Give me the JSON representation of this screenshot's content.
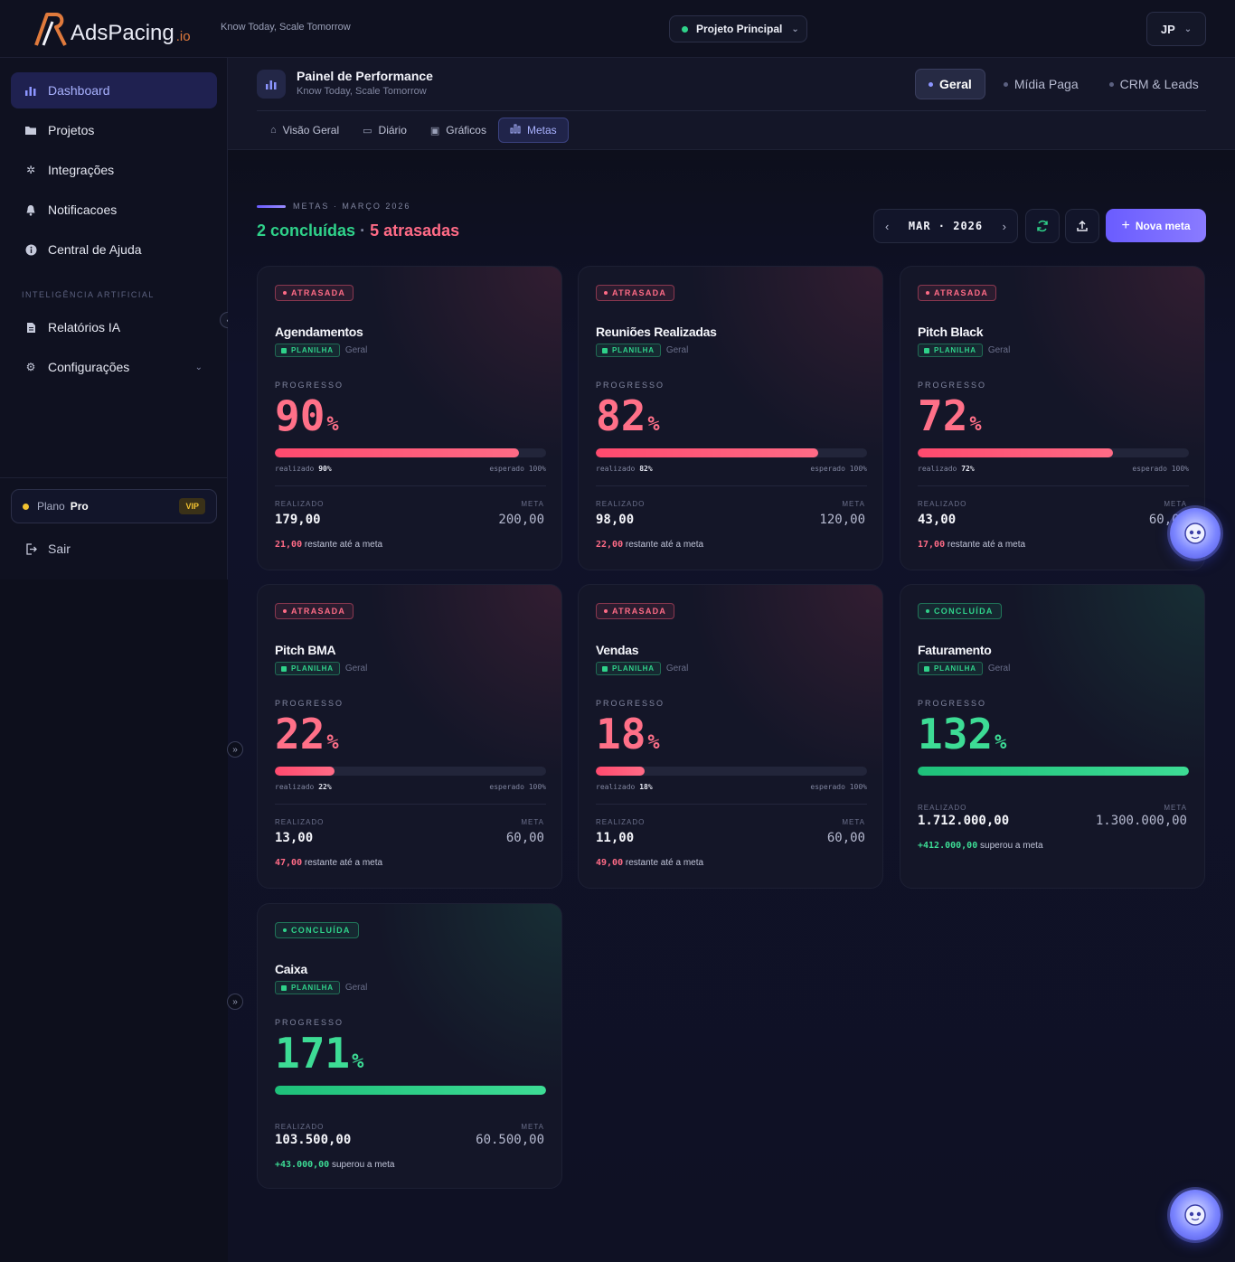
{
  "topbar": {
    "logo_text": "AdsPacing",
    "logo_suffix": ".io",
    "tagline": "Know Today, Scale Tomorrow",
    "project": "Projeto Principal",
    "user_initials": "JP"
  },
  "sidebar": {
    "items": [
      {
        "label": "Dashboard",
        "icon": "bar-chart-icon"
      },
      {
        "label": "Projetos",
        "icon": "folder-icon"
      },
      {
        "label": "Integrações",
        "icon": "gear-icon"
      },
      {
        "label": "Notificacoes",
        "icon": "bell-icon"
      },
      {
        "label": "Central de Ajuda",
        "icon": "info-icon"
      }
    ],
    "ai_section_label": "INTELIGÊNCIA ARTIFICIAL",
    "ai_items": [
      {
        "label": "Relatórios IA",
        "icon": "document-icon"
      },
      {
        "label": "Configurações",
        "icon": "settings-icon"
      }
    ],
    "plan_label": "Plano",
    "plan_value": "Pro",
    "plan_badge": "VIP",
    "logout": "Sair"
  },
  "header": {
    "title": "Painel de Performance",
    "subtitle": "Know Today, Scale Tomorrow",
    "view_tabs": [
      "Geral",
      "Mídia Paga",
      "CRM & Leads"
    ],
    "sub_tabs": [
      "Visão Geral",
      "Diário",
      "Gráficos",
      "Metas"
    ]
  },
  "goals_page": {
    "eyebrow": "METAS · MARÇO 2026",
    "done_summary": "2 concluídas",
    "separator": "·",
    "late_summary": "5 atrasadas",
    "month_label": "MAR · 2026",
    "new_goal_label": "Nova meta"
  },
  "labels": {
    "source": "PLANILHA",
    "scope": "Geral",
    "progress": "PROGRESSO",
    "realized_short": "realizado",
    "expected_short": "esperado",
    "expected_value": "100%",
    "realized": "REALIZADO",
    "target": "META",
    "remaining_suffix": "restante até a meta",
    "exceeded_suffix": "superou a meta",
    "pct_sign": "%"
  },
  "goals": [
    {
      "status": "ATRASADA",
      "name": "Agendamentos",
      "progress": "90",
      "fill": 0.9,
      "realized_pct": "90%",
      "realized": "179,00",
      "target": "200,00",
      "delta": "21,00"
    },
    {
      "status": "ATRASADA",
      "name": "Reuniões Realizadas",
      "progress": "82",
      "fill": 0.82,
      "realized_pct": "82%",
      "realized": "98,00",
      "target": "120,00",
      "delta": "22,00"
    },
    {
      "status": "ATRASADA",
      "name": "Pitch Black",
      "progress": "72",
      "fill": 0.72,
      "realized_pct": "72%",
      "realized": "43,00",
      "target": "60,00",
      "delta": "17,00"
    },
    {
      "status": "ATRASADA",
      "name": "Pitch BMA",
      "progress": "22",
      "fill": 0.22,
      "realized_pct": "22%",
      "realized": "13,00",
      "target": "60,00",
      "delta": "47,00"
    },
    {
      "status": "ATRASADA",
      "name": "Vendas",
      "progress": "18",
      "fill": 0.18,
      "realized_pct": "18%",
      "realized": "11,00",
      "target": "60,00",
      "delta": "49,00"
    },
    {
      "status": "CONCLUÍDA",
      "name": "Faturamento",
      "progress": "132",
      "fill": 1.0,
      "realized": "1.712.000,00",
      "target": "1.300.000,00",
      "delta": "+412.000,00"
    },
    {
      "status": "CONCLUÍDA",
      "name": "Caixa",
      "progress": "171",
      "fill": 1.0,
      "realized": "103.500,00",
      "target": "60.500,00",
      "delta": "+43.000,00"
    }
  ],
  "colors": {
    "accent": "#6a5cff",
    "late": "#ff6b86",
    "done": "#2fd28a"
  }
}
